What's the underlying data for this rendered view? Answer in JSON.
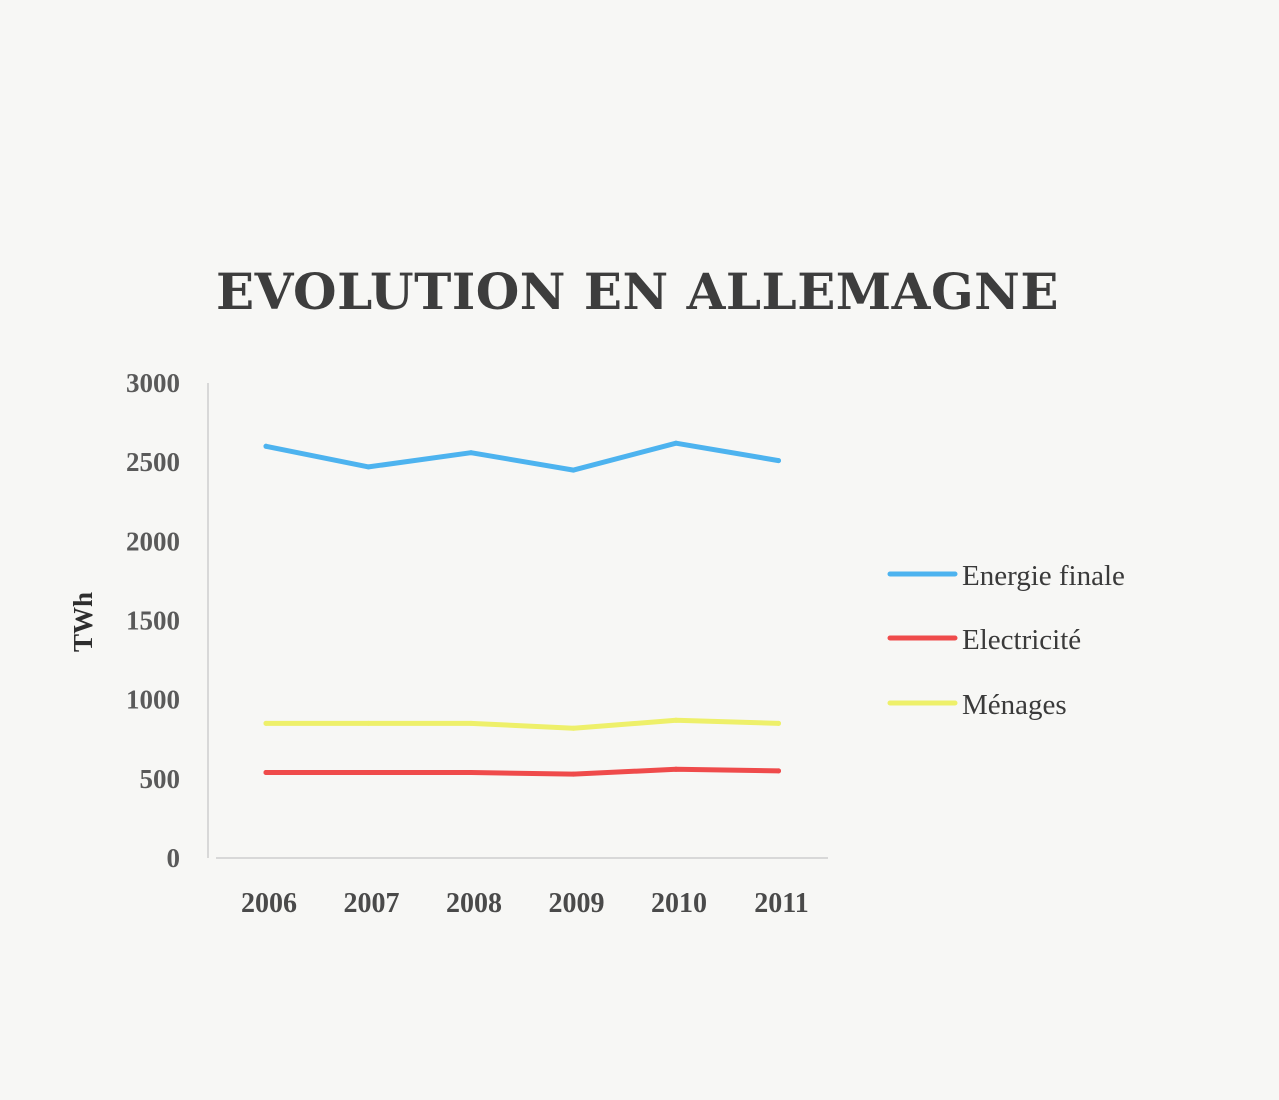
{
  "chart_data": {
    "type": "line",
    "title": "EVOLUTION EN ALLEMAGNE",
    "ylabel": "TWh",
    "xlabel": "",
    "categories": [
      "2006",
      "2007",
      "2008",
      "2009",
      "2010",
      "2011"
    ],
    "ylim": [
      0,
      3000
    ],
    "yticks": [
      "0",
      "500",
      "1000",
      "1500",
      "2000",
      "2500",
      "3000"
    ],
    "grid": false,
    "legend_position": "right",
    "series": [
      {
        "name": "Energie finale",
        "color": "#4db3ef",
        "values": [
          2600,
          2470,
          2560,
          2450,
          2620,
          2510
        ]
      },
      {
        "name": "Electricité",
        "color": "#ef4b4b",
        "values": [
          540,
          540,
          540,
          530,
          560,
          550
        ]
      },
      {
        "name": "Ménages",
        "color": "#eef06a",
        "values": [
          850,
          850,
          850,
          820,
          870,
          850
        ]
      }
    ]
  }
}
